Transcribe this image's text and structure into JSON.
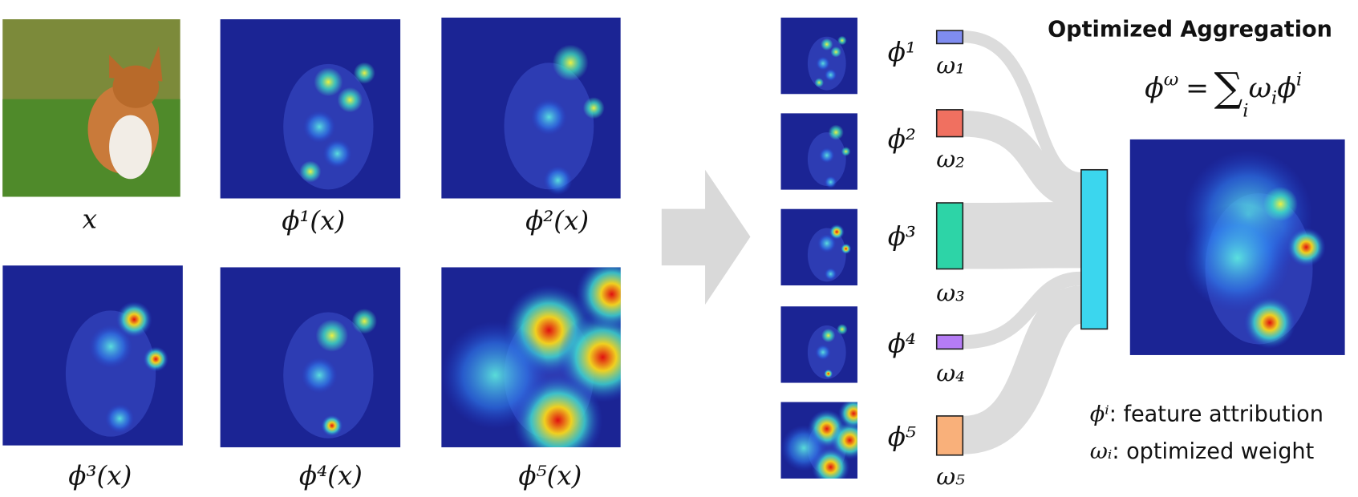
{
  "panels": [
    "x",
    "ϕ¹(x)",
    "ϕ²(x)",
    "ϕ³(x)",
    "ϕ⁴(x)",
    "ϕ⁵(x)"
  ],
  "attributions": [
    "ϕ¹",
    "ϕ²",
    "ϕ³",
    "ϕ⁴",
    "ϕ⁵"
  ],
  "weights": [
    "ω₁",
    "ω₂",
    "ω₃",
    "ω₄",
    "ω₅"
  ],
  "title": "Optimized Aggregation",
  "formula": {
    "lhs": "ϕ",
    "lhs_sup": "ω",
    "eq": "=",
    "sum": "∑",
    "sum_sub": "i",
    "w": "ω",
    "w_sub": "i",
    "phi": "ϕ",
    "phi_sup": "i"
  },
  "legend": [
    {
      "symbol": "ϕⁱ",
      "text": ": feature attribution"
    },
    {
      "symbol": "ωᵢ",
      "text": ": optimized weight"
    }
  ]
}
